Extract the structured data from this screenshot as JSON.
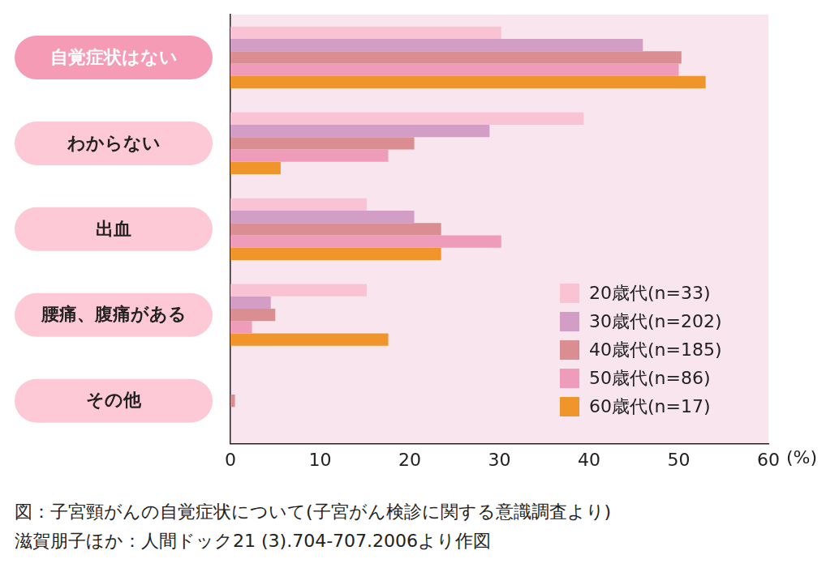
{
  "chart_data": {
    "type": "bar",
    "orientation": "horizontal",
    "title": "図：子宮頸がんの自覚症状について(子宮がん検診に関する意識調査より)",
    "source": "滋賀朋子ほか：人間ドック21 (3).704-707.2006より作図",
    "x_label": "(%)",
    "categories": [
      "自覚症状はない",
      "わからない",
      "出血",
      "腰痛、腹痛がある",
      "その他"
    ],
    "series": [
      {
        "name": "20歳代(n=33)",
        "color": "#f9c3d3",
        "values": [
          30.2,
          39.4,
          15.2,
          15.2,
          0
        ]
      },
      {
        "name": "30歳代(n=202)",
        "color": "#d29ec6",
        "values": [
          46.0,
          28.9,
          20.5,
          4.5,
          0
        ]
      },
      {
        "name": "40歳代(n=185)",
        "color": "#db8e92",
        "values": [
          50.3,
          20.5,
          23.5,
          5.0,
          0.5
        ]
      },
      {
        "name": "50歳代(n=86)",
        "color": "#ef9bba",
        "values": [
          50.0,
          17.6,
          30.2,
          2.4,
          0
        ]
      },
      {
        "name": "60歳代(n=17)",
        "color": "#ef952b",
        "values": [
          53.0,
          5.6,
          23.5,
          17.6,
          0
        ]
      }
    ],
    "xlim": [
      0,
      60
    ],
    "xticks": [
      0,
      10,
      20,
      30,
      40,
      50,
      60
    ],
    "grid": false,
    "legend": "lower right",
    "data_labels": false
  }
}
